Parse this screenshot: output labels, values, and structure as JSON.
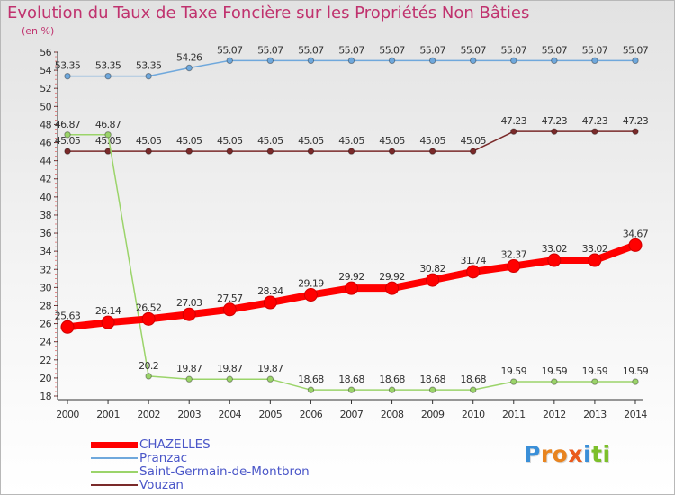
{
  "chart_data": {
    "type": "line",
    "title": "Evolution du Taux de Taxe Foncière sur les Propriétés Non Bâties",
    "ylabel": "(en %)",
    "xlabel": "",
    "categories": [
      "2000",
      "2001",
      "2002",
      "2003",
      "2004",
      "2005",
      "2006",
      "2007",
      "2008",
      "2009",
      "2010",
      "2011",
      "2012",
      "2013",
      "2014"
    ],
    "ylim": [
      18,
      56
    ],
    "yticks": [
      18,
      20,
      22,
      24,
      26,
      28,
      30,
      32,
      34,
      36,
      38,
      40,
      42,
      44,
      46,
      48,
      50,
      52,
      54,
      56
    ],
    "series": [
      {
        "name": "CHAZELLES",
        "color": "#ff0000",
        "labels_above": true,
        "values": [
          25.63,
          26.14,
          26.52,
          27.03,
          27.57,
          28.34,
          29.19,
          29.92,
          29.92,
          30.82,
          31.74,
          32.37,
          33.02,
          33.02,
          34.67
        ],
        "labels": [
          "25.63",
          "26.14",
          "26.52",
          "27.03",
          "27.57",
          "28.34",
          "29.19",
          "29.92",
          "29.92",
          "30.82",
          "31.74",
          "32.37",
          "33.02",
          "33.02",
          "34.67"
        ]
      },
      {
        "name": "Pranzac",
        "color": "#6fa8dc",
        "labels_above": true,
        "values": [
          53.35,
          53.35,
          53.35,
          54.26,
          55.07,
          55.07,
          55.07,
          55.07,
          55.07,
          55.07,
          55.07,
          55.07,
          55.07,
          55.07,
          55.07
        ],
        "labels": [
          "53.35",
          "53.35",
          "53.35",
          "54.26",
          "55.07",
          "55.07",
          "55.07",
          "55.07",
          "55.07",
          "55.07",
          "55.07",
          "55.07",
          "55.07",
          "55.07",
          "55.07"
        ]
      },
      {
        "name": "Saint-Germain-de-Montbron",
        "color": "#9bd46a",
        "labels_above": true,
        "values": [
          46.87,
          46.87,
          20.2,
          19.87,
          19.87,
          19.87,
          18.68,
          18.68,
          18.68,
          18.68,
          18.68,
          19.59,
          19.59,
          19.59,
          19.59
        ],
        "labels": [
          "46.87",
          "46.87",
          "20.2",
          "19.87",
          "19.87",
          "19.87",
          "18.68",
          "18.68",
          "18.68",
          "18.68",
          "18.68",
          "19.59",
          "19.59",
          "19.59",
          "19.59"
        ]
      },
      {
        "name": "Vouzan",
        "color": "#7a2a2a",
        "labels_above": true,
        "values": [
          45.05,
          45.05,
          45.05,
          45.05,
          45.05,
          45.05,
          45.05,
          45.05,
          45.05,
          45.05,
          45.05,
          47.23,
          47.23,
          47.23,
          47.23
        ],
        "labels": [
          "45.05",
          "45.05",
          "45.05",
          "45.05",
          "45.05",
          "45.05",
          "45.05",
          "45.05",
          "45.05",
          "45.05",
          "45.05",
          "47.23",
          "47.23",
          "47.23",
          "47.23"
        ]
      }
    ],
    "legend_position": "bottom-left",
    "grid": false
  },
  "logo": {
    "letters": [
      "P",
      "r",
      "o",
      "x",
      "i",
      "t",
      "i"
    ],
    "colors": [
      "#3a8fd8",
      "#e8841f",
      "#e8841f",
      "#ea5a1c",
      "#3a8fd8",
      "#7cbf2a",
      "#7cbf2a"
    ]
  }
}
